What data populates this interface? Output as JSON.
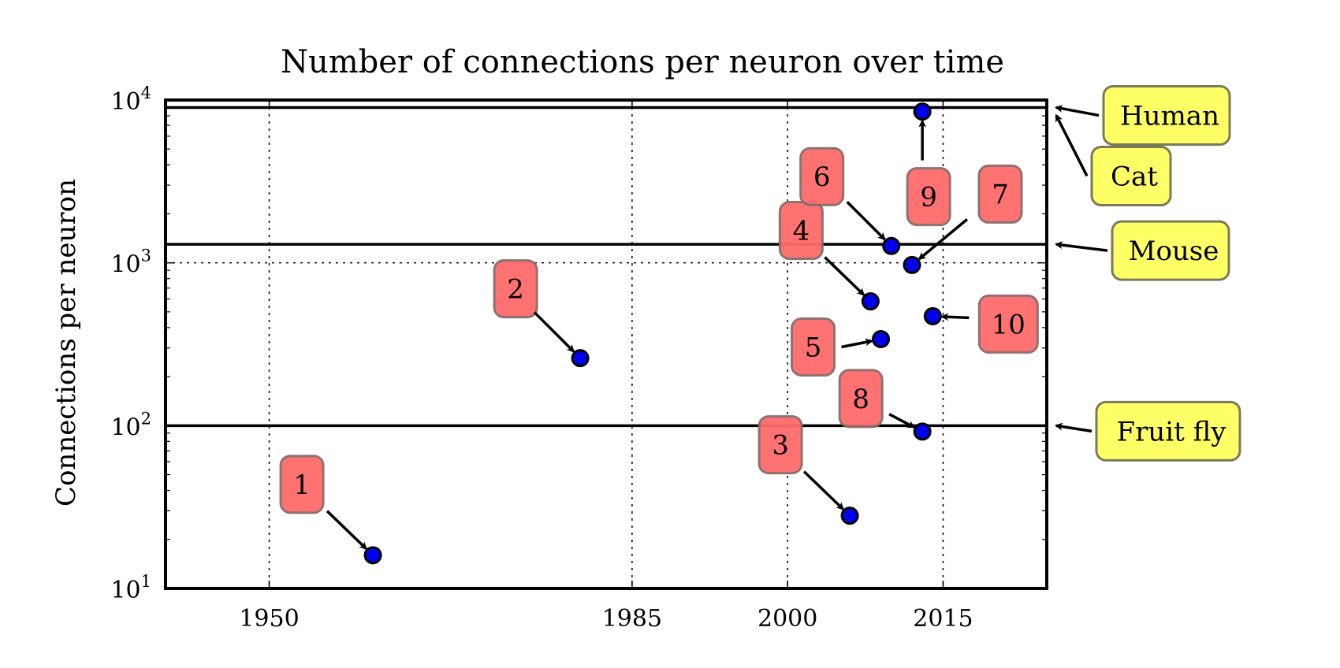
{
  "chart_data": {
    "type": "scatter",
    "title": "Number of connections per neuron over time",
    "xlabel": "",
    "ylabel": "Connections per neuron",
    "yscale": "log",
    "xlim": [
      1940,
      2025
    ],
    "ylim": [
      10,
      10000
    ],
    "grid": {
      "x": "dotted",
      "y": "dotted at 10^3"
    },
    "xticks": [
      {
        "value": 1950,
        "label": "1950"
      },
      {
        "value": 1985,
        "label": "1985"
      },
      {
        "value": 2000,
        "label": "2000"
      },
      {
        "value": 2015,
        "label": "2015"
      }
    ],
    "yticks": [
      {
        "value": 10,
        "base": "10",
        "exp": "1"
      },
      {
        "value": 100,
        "base": "10",
        "exp": "2"
      },
      {
        "value": 1000,
        "base": "10",
        "exp": "3"
      },
      {
        "value": 10000,
        "base": "10",
        "exp": "4"
      }
    ],
    "points": [
      {
        "label": "1",
        "x": 1960,
        "y": 16
      },
      {
        "label": "2",
        "x": 1980,
        "y": 260
      },
      {
        "label": "3",
        "x": 2006,
        "y": 28
      },
      {
        "label": "4",
        "x": 2008,
        "y": 580
      },
      {
        "label": "5",
        "x": 2009,
        "y": 340
      },
      {
        "label": "6",
        "x": 2010,
        "y": 1270
      },
      {
        "label": "7",
        "x": 2012,
        "y": 970
      },
      {
        "label": "8",
        "x": 2013,
        "y": 92
      },
      {
        "label": "9",
        "x": 2013,
        "y": 8500
      },
      {
        "label": "10",
        "x": 2014,
        "y": 470
      }
    ],
    "reference_lines": [
      {
        "label": "Human",
        "y": 9000
      },
      {
        "label": "Cat",
        "y": 9000
      },
      {
        "label": "Mouse",
        "y": 1300
      },
      {
        "label": "Fruit fly",
        "y": 100
      }
    ],
    "colors": {
      "point": "#0000ee",
      "point_label_fill": "#ff6b6b",
      "reference_label_fill": "#ffff66",
      "line": "#000000"
    }
  }
}
